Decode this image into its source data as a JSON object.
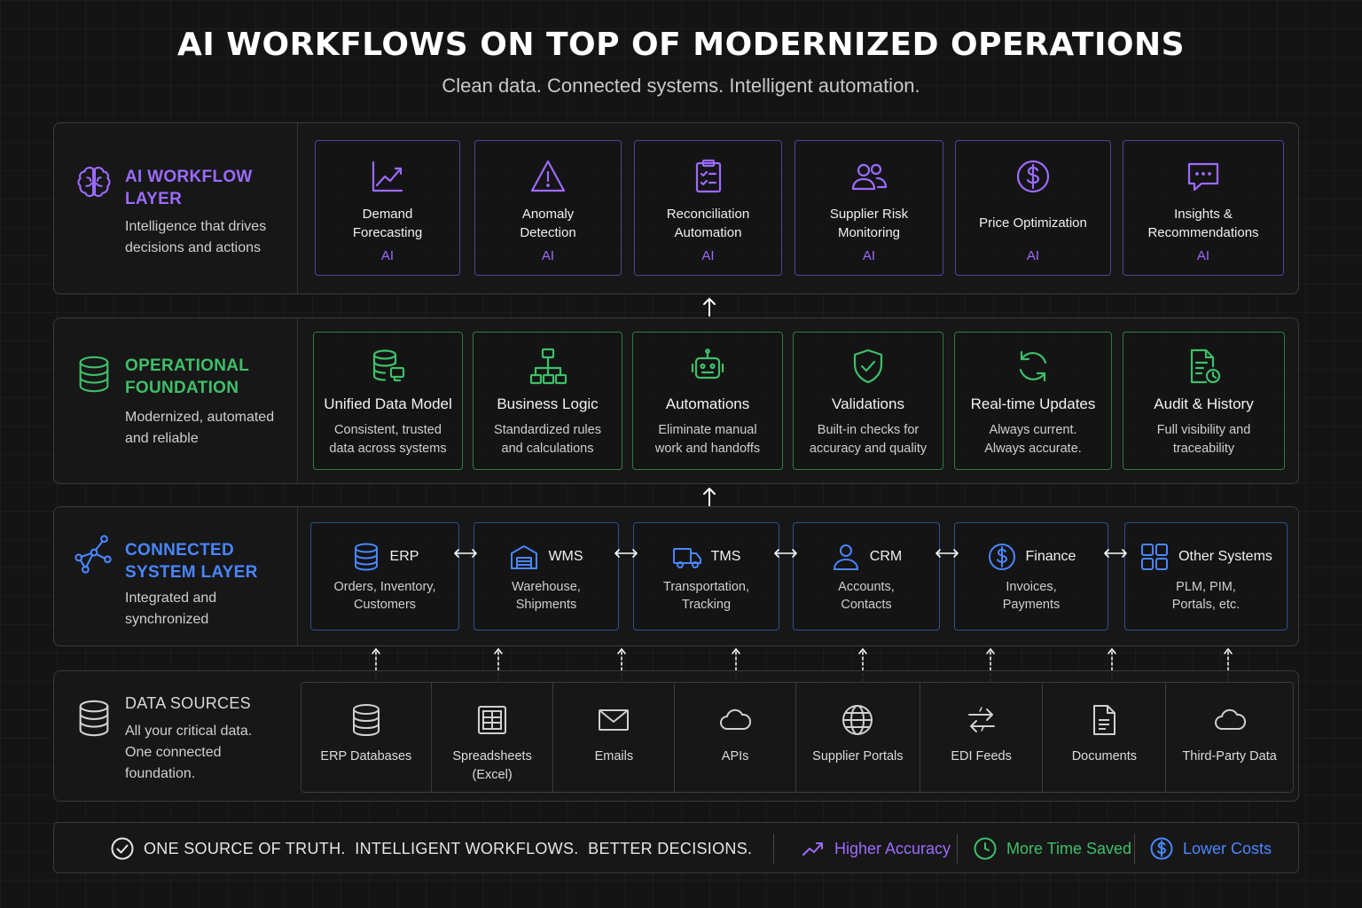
{
  "header": {
    "title": "AI WORKFLOWS ON TOP OF MODERNIZED OPERATIONS",
    "subtitle": "Clean data. Connected systems. Intelligent automation."
  },
  "colors": {
    "ai": "#9b6bff",
    "operational": "#3fbf6a",
    "system": "#4a86ff",
    "sources": "#d0d0d0",
    "background": "#141414"
  },
  "ai_layer": {
    "title_line1": "AI WORKFLOW",
    "title_line2": "LAYER",
    "desc_line1": "Intelligence that drives",
    "desc_line2": "decisions and actions",
    "icon": "brain-icon",
    "cards": [
      {
        "line1": "Demand",
        "line2": "Forecasting",
        "tag": "AI",
        "icon": "trend-chart-icon"
      },
      {
        "line1": "Anomaly",
        "line2": "Detection",
        "tag": "AI",
        "icon": "warning-icon"
      },
      {
        "line1": "Reconciliation",
        "line2": "Automation",
        "tag": "AI",
        "icon": "clipboard-check-icon"
      },
      {
        "line1": "Supplier Risk",
        "line2": "Monitoring",
        "tag": "AI",
        "icon": "users-icon"
      },
      {
        "line1": "Price Optimization",
        "line2": "",
        "tag": "AI",
        "icon": "dollar-circle-icon"
      },
      {
        "line1": "Insights &",
        "line2": "Recommendations",
        "tag": "AI",
        "icon": "chat-bubble-icon"
      }
    ]
  },
  "op_layer": {
    "title_line1": "OPERATIONAL",
    "title_line2": "FOUNDATION",
    "desc_line1": "Modernized, automated",
    "desc_line2": "and reliable",
    "icon": "database-icon",
    "cards": [
      {
        "title": "Unified Data Model",
        "desc1": "Consistent, trusted",
        "desc2": "data across systems",
        "icon": "database-link-icon"
      },
      {
        "title": "Business Logic",
        "desc1": "Standardized rules",
        "desc2": "and calculations",
        "icon": "hierarchy-icon"
      },
      {
        "title": "Automations",
        "desc1": "Eliminate manual",
        "desc2": "work and handoffs",
        "icon": "robot-icon"
      },
      {
        "title": "Validations",
        "desc1": "Built-in checks for",
        "desc2": "accuracy and quality",
        "icon": "shield-check-icon"
      },
      {
        "title": "Real-time Updates",
        "desc1": "Always current.",
        "desc2": "Always accurate.",
        "icon": "refresh-icon"
      },
      {
        "title": "Audit & History",
        "desc1": "Full visibility and",
        "desc2": "traceability",
        "icon": "document-clock-icon"
      }
    ]
  },
  "sys_layer": {
    "title_line1": "CONNECTED",
    "title_line2": "SYSTEM LAYER",
    "desc_line1": "Integrated and",
    "desc_line2": "synchronized",
    "icon": "network-icon",
    "cards": [
      {
        "name": "ERP",
        "desc1": "Orders, Inventory,",
        "desc2": "Customers",
        "icon": "database-icon"
      },
      {
        "name": "WMS",
        "desc1": "Warehouse,",
        "desc2": "Shipments",
        "icon": "warehouse-icon"
      },
      {
        "name": "TMS",
        "desc1": "Transportation,",
        "desc2": "Tracking",
        "icon": "truck-icon"
      },
      {
        "name": "CRM",
        "desc1": "Accounts,",
        "desc2": "Contacts",
        "icon": "user-icon"
      },
      {
        "name": "Finance",
        "desc1": "Invoices,",
        "desc2": "Payments",
        "icon": "dollar-circle-icon"
      },
      {
        "name": "Other Systems",
        "desc1": "PLM, PIM,",
        "desc2": "Portals, etc.",
        "icon": "grid-icon"
      }
    ]
  },
  "data_layer": {
    "title": "DATA SOURCES",
    "desc_line1": "All your critical data.",
    "desc_line2": "One connected",
    "desc_line3": "foundation.",
    "icon": "database-icon",
    "sources": [
      {
        "line1": "ERP Databases",
        "line2": "",
        "icon": "database-icon"
      },
      {
        "line1": "Spreadsheets",
        "line2": "(Excel)",
        "icon": "spreadsheet-icon"
      },
      {
        "line1": "Emails",
        "line2": "",
        "icon": "mail-icon"
      },
      {
        "line1": "APIs",
        "line2": "",
        "icon": "cloud-icon"
      },
      {
        "line1": "Supplier Portals",
        "line2": "",
        "icon": "globe-icon"
      },
      {
        "line1": "EDI Feeds",
        "line2": "",
        "icon": "transfer-arrows-icon"
      },
      {
        "line1": "Documents",
        "line2": "",
        "icon": "document-icon"
      },
      {
        "line1": "Third-Party Data",
        "line2": "",
        "icon": "cloud-icon"
      }
    ]
  },
  "footer": {
    "tagline": "ONE SOURCE OF TRUTH.  INTELLIGENT WORKFLOWS.  BETTER DECISIONS.",
    "benefits": [
      {
        "label": "Higher Accuracy",
        "icon": "trend-up-icon",
        "color": "#9b6bff"
      },
      {
        "label": "More Time Saved",
        "icon": "clock-icon",
        "color": "#3fbf6a"
      },
      {
        "label": "Lower Costs",
        "icon": "dollar-circle-icon",
        "color": "#4a86ff"
      }
    ]
  }
}
